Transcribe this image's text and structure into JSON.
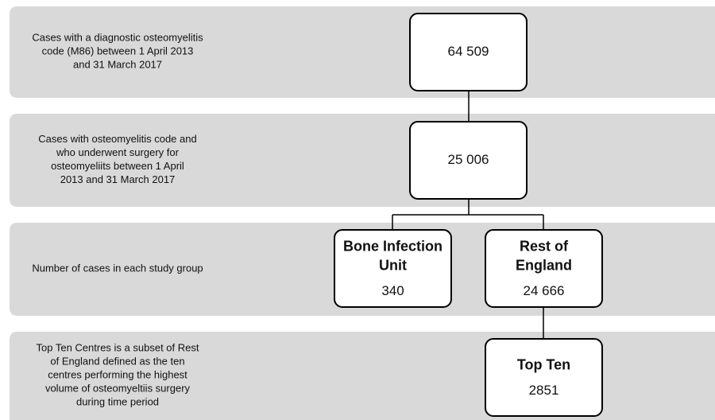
{
  "rows": [
    {
      "description": [
        "Cases with a diagnostic osteomyelitis",
        "code (M86) between 1 April 2013",
        "and 31 March 2017"
      ]
    },
    {
      "description": [
        "Cases with osteomyelitis code and",
        "who underwent surgery for",
        "osteomyeliits between 1 April",
        "2013 and 31 March 2017"
      ]
    },
    {
      "description": [
        "Number of cases in each study group"
      ]
    },
    {
      "description": [
        "Top Ten Centres is a subset of Rest",
        "of England defined as the ten",
        "centres performing the highest",
        "volume of osteomyeltiis surgery",
        "during time period"
      ]
    }
  ],
  "nodes": [
    {
      "title": [],
      "count": "64 509"
    },
    {
      "title": [],
      "count": "25 006"
    },
    {
      "title": [
        "Bone Infection",
        "Unit"
      ],
      "count": "340"
    },
    {
      "title": [
        "Rest of",
        "England"
      ],
      "count": "24 666"
    },
    {
      "title": [
        "Top Ten"
      ],
      "count": "2851"
    }
  ]
}
